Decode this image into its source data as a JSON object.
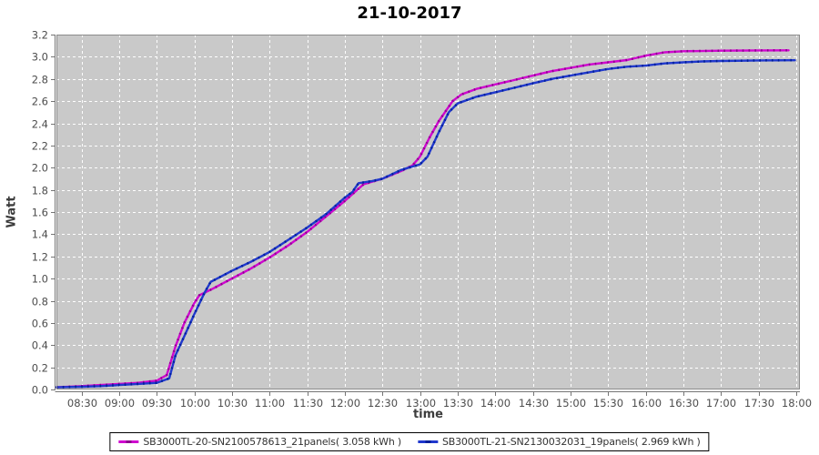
{
  "chart_data": {
    "type": "line",
    "title": "21-10-2017",
    "xlabel": "time",
    "ylabel": "Watt",
    "ylim": [
      0.0,
      3.2
    ],
    "x_domain": [
      "08:10",
      "18:03"
    ],
    "grid": true,
    "legend_position": "bottom",
    "plot_bg": "#c9c9c9",
    "grid_color": "#ffffff",
    "axis_color": "#757575",
    "tick_label_color": "#4d4d4d",
    "xticks": [
      "08:30",
      "09:00",
      "09:30",
      "10:00",
      "10:30",
      "11:00",
      "11:30",
      "12:00",
      "12:30",
      "13:00",
      "13:30",
      "14:00",
      "14:30",
      "15:00",
      "15:30",
      "16:00",
      "16:30",
      "17:00",
      "17:30",
      "18:00"
    ],
    "yticks": [
      "0.0",
      "0.2",
      "0.4",
      "0.6",
      "0.8",
      "1.0",
      "1.2",
      "1.4",
      "1.6",
      "1.8",
      "2.0",
      "2.2",
      "2.4",
      "2.6",
      "2.8",
      "3.0",
      "3.2"
    ],
    "series": [
      {
        "name": "SB3000TL-20-SN2100578613_21panels( 3.058 kWh )",
        "color": "#cf06cf",
        "marker_color": "#8e028e",
        "points": [
          [
            "08:10",
            0.02
          ],
          [
            "08:30",
            0.03
          ],
          [
            "08:45",
            0.04
          ],
          [
            "09:00",
            0.05
          ],
          [
            "09:15",
            0.06
          ],
          [
            "09:30",
            0.08
          ],
          [
            "09:38",
            0.13
          ],
          [
            "09:45",
            0.39
          ],
          [
            "09:52",
            0.6
          ],
          [
            "10:00",
            0.78
          ],
          [
            "10:04",
            0.85
          ],
          [
            "10:15",
            0.91
          ],
          [
            "10:30",
            1.0
          ],
          [
            "10:45",
            1.09
          ],
          [
            "11:00",
            1.19
          ],
          [
            "11:15",
            1.3
          ],
          [
            "11:30",
            1.42
          ],
          [
            "11:45",
            1.56
          ],
          [
            "12:00",
            1.7
          ],
          [
            "12:15",
            1.85
          ],
          [
            "12:30",
            1.9
          ],
          [
            "12:45",
            1.97
          ],
          [
            "12:54",
            2.02
          ],
          [
            "13:00",
            2.1
          ],
          [
            "13:08",
            2.28
          ],
          [
            "13:15",
            2.42
          ],
          [
            "13:26",
            2.6
          ],
          [
            "13:33",
            2.66
          ],
          [
            "13:45",
            2.71
          ],
          [
            "14:00",
            2.75
          ],
          [
            "14:15",
            2.79
          ],
          [
            "14:30",
            2.83
          ],
          [
            "14:45",
            2.87
          ],
          [
            "15:00",
            2.9
          ],
          [
            "15:15",
            2.93
          ],
          [
            "15:30",
            2.95
          ],
          [
            "15:45",
            2.97
          ],
          [
            "16:00",
            3.01
          ],
          [
            "16:15",
            3.04
          ],
          [
            "16:30",
            3.05
          ],
          [
            "17:00",
            3.055
          ],
          [
            "17:30",
            3.057
          ],
          [
            "17:54",
            3.058
          ]
        ]
      },
      {
        "name": "SB3000TL-21-SN2130032031_19panels( 2.969 kWh )",
        "color": "#2038cd",
        "marker_color": "#001f99",
        "points": [
          [
            "08:10",
            0.02
          ],
          [
            "08:30",
            0.025
          ],
          [
            "08:45",
            0.03
          ],
          [
            "09:00",
            0.04
          ],
          [
            "09:15",
            0.05
          ],
          [
            "09:30",
            0.06
          ],
          [
            "09:40",
            0.1
          ],
          [
            "09:45",
            0.31
          ],
          [
            "09:52",
            0.48
          ],
          [
            "10:00",
            0.68
          ],
          [
            "10:08",
            0.87
          ],
          [
            "10:13",
            0.97
          ],
          [
            "10:30",
            1.07
          ],
          [
            "10:45",
            1.15
          ],
          [
            "11:00",
            1.24
          ],
          [
            "11:15",
            1.35
          ],
          [
            "11:30",
            1.46
          ],
          [
            "11:45",
            1.58
          ],
          [
            "12:00",
            1.73
          ],
          [
            "12:06",
            1.78
          ],
          [
            "12:11",
            1.86
          ],
          [
            "12:22",
            1.88
          ],
          [
            "12:30",
            1.9
          ],
          [
            "12:45",
            1.98
          ],
          [
            "13:00",
            2.03
          ],
          [
            "13:06",
            2.1
          ],
          [
            "13:15",
            2.32
          ],
          [
            "13:23",
            2.5
          ],
          [
            "13:30",
            2.58
          ],
          [
            "13:45",
            2.64
          ],
          [
            "14:00",
            2.68
          ],
          [
            "14:15",
            2.72
          ],
          [
            "14:30",
            2.76
          ],
          [
            "14:45",
            2.8
          ],
          [
            "15:00",
            2.83
          ],
          [
            "15:15",
            2.86
          ],
          [
            "15:30",
            2.89
          ],
          [
            "15:45",
            2.91
          ],
          [
            "16:00",
            2.92
          ],
          [
            "16:15",
            2.94
          ],
          [
            "16:30",
            2.95
          ],
          [
            "16:45",
            2.958
          ],
          [
            "17:00",
            2.962
          ],
          [
            "17:30",
            2.967
          ],
          [
            "17:59",
            2.969
          ]
        ]
      }
    ]
  }
}
